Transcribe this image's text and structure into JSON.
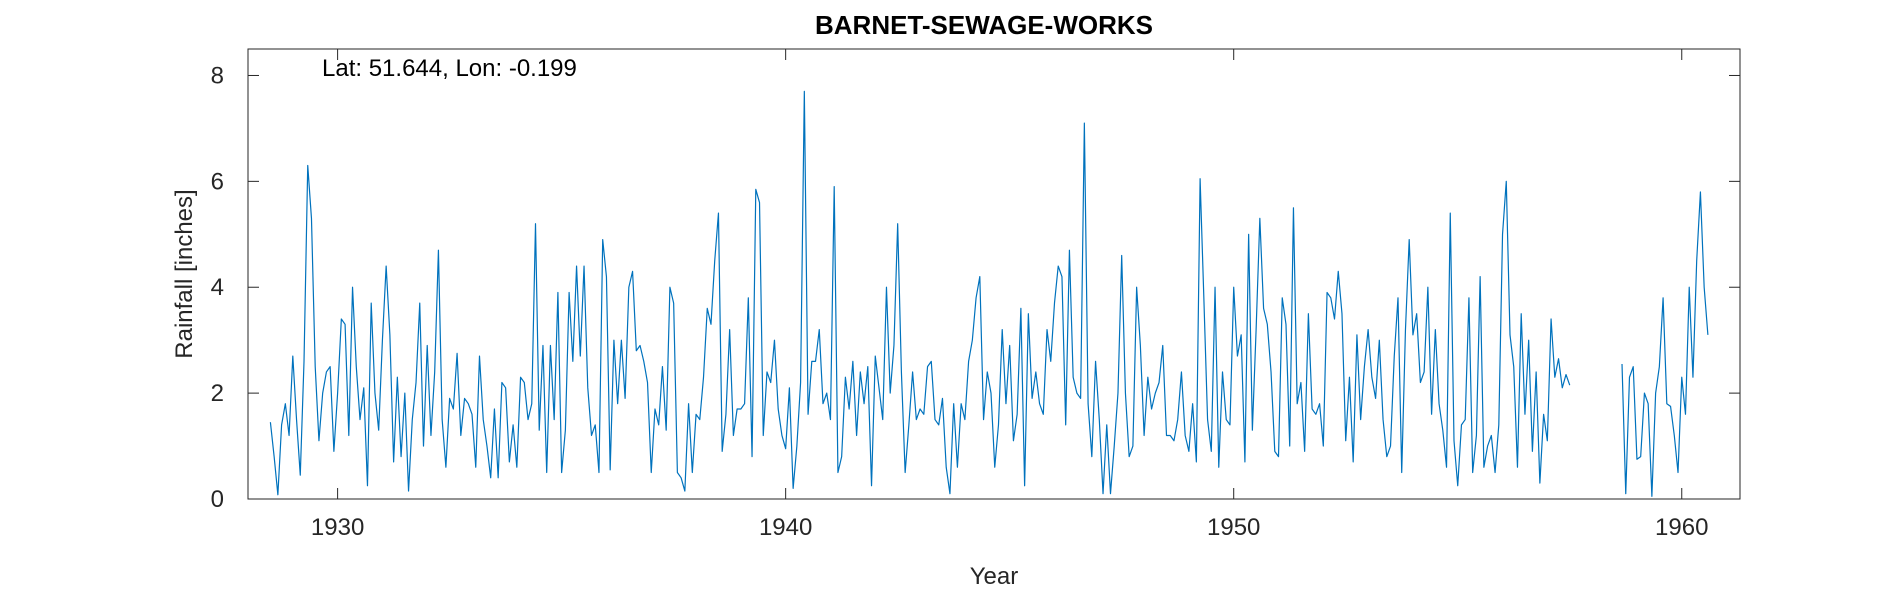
{
  "chart_data": {
    "type": "line",
    "title": "BARNET-SEWAGE-WORKS",
    "xlabel": "Year",
    "ylabel": "Rainfall [inches]",
    "annotation": "Lat: 51.644, Lon: -0.199",
    "xlim": [
      1928,
      1961.3
    ],
    "ylim": [
      0,
      8.5
    ],
    "xticks": [
      1930,
      1940,
      1950,
      1960
    ],
    "xtick_labels": [
      "1930",
      "1940",
      "1950",
      "1960"
    ],
    "yticks": [
      0,
      2,
      4,
      6,
      8
    ],
    "ytick_labels": [
      "0",
      "2",
      "4",
      "6",
      "8"
    ],
    "grid": false,
    "legend": "none",
    "line_color": "#0072BD",
    "series": [
      {
        "start": 1928.5,
        "step_per_year": 12,
        "segments": [
          {
            "start_index": 0,
            "values": [
              1.45,
              0.8,
              0.08,
              1.4,
              1.8,
              1.2,
              2.7,
              1.5,
              0.45,
              2.6,
              6.3,
              5.3,
              2.5,
              1.1,
              2.0,
              2.4,
              2.5,
              0.9,
              2.0,
              3.4,
              3.3,
              1.2,
              4.0,
              2.5,
              1.5,
              2.1,
              0.25,
              3.7,
              2.0,
              1.3,
              3.0,
              4.4,
              3.1,
              0.7,
              2.3,
              0.8,
              2.0,
              0.15,
              1.5,
              2.2,
              3.7,
              1.0,
              2.9,
              1.2,
              2.4,
              4.7,
              1.5,
              0.6,
              1.9,
              1.7,
              2.75,
              1.2,
              1.9,
              1.8,
              1.6,
              0.6,
              2.7,
              1.5,
              1.0,
              0.4,
              1.7,
              0.4,
              2.2,
              2.1,
              0.7,
              1.4,
              0.6,
              2.3,
              2.2,
              1.5,
              1.8,
              5.2,
              1.3,
              2.9,
              0.5,
              2.9,
              1.5,
              3.9,
              0.5,
              1.3,
              3.9,
              2.6,
              4.4,
              2.7,
              4.4,
              2.1,
              1.2,
              1.4,
              0.5,
              4.9,
              4.2,
              0.55,
              3.0,
              1.8,
              3.0,
              1.9,
              4.0,
              4.3,
              2.8,
              2.9,
              2.6,
              2.2,
              0.5,
              1.7,
              1.4,
              2.5,
              1.3,
              4.0,
              3.7,
              0.5,
              0.4,
              0.15,
              1.8,
              0.5,
              1.6,
              1.5,
              2.3,
              3.6,
              3.3,
              4.5,
              5.4,
              0.9,
              1.6,
              3.2,
              1.2,
              1.7,
              1.7,
              1.8,
              3.8,
              0.8,
              5.85,
              5.6,
              1.2,
              2.4,
              2.2,
              3.0,
              1.7,
              1.2,
              0.95,
              2.1,
              0.2,
              1.0,
              2.2,
              7.7,
              1.6,
              2.6,
              2.6,
              3.2,
              1.8,
              2.0,
              1.5,
              5.9,
              0.5,
              0.8,
              2.3,
              1.7,
              2.6,
              1.2,
              2.4,
              1.8,
              2.5,
              0.25,
              2.7,
              2.1,
              1.5,
              4.0,
              2.0,
              2.9,
              5.2,
              2.4,
              0.5,
              1.4,
              2.4,
              1.5,
              1.7,
              1.6,
              2.5,
              2.6,
              1.5,
              1.4,
              1.9,
              0.6,
              0.1,
              1.8,
              0.6,
              1.8,
              1.5,
              2.6,
              3.0,
              3.8,
              4.2,
              1.5,
              2.4,
              2.0,
              0.6,
              1.4,
              3.2,
              1.8,
              2.9,
              1.1,
              1.6,
              3.6,
              0.25,
              3.5,
              1.9,
              2.4,
              1.8,
              1.6,
              3.2,
              2.6,
              3.7,
              4.4,
              4.2,
              1.4,
              4.7,
              2.3,
              2.0,
              1.9,
              7.1,
              1.8,
              0.8,
              2.6,
              1.5,
              0.1,
              1.4,
              0.1,
              1.0,
              2.0,
              4.6,
              2.0,
              0.8,
              1.0,
              4.0,
              2.9,
              1.2,
              2.3,
              1.7,
              2.0,
              2.2,
              2.9,
              1.2,
              1.2,
              1.1,
              1.5,
              2.4,
              1.2,
              0.9,
              1.8,
              0.7,
              6.05,
              3.8,
              1.5,
              0.9,
              4.0,
              0.6,
              2.4,
              1.5,
              1.4,
              4.0,
              2.7,
              3.1,
              0.7,
              5.0,
              1.3,
              3.2,
              5.3,
              3.6,
              3.3,
              2.4,
              0.9,
              0.8,
              3.8,
              3.3,
              1.0,
              5.5,
              1.8,
              2.2,
              0.9,
              3.5,
              1.7,
              1.6,
              1.8,
              1.0,
              3.9,
              3.8,
              3.4,
              4.3,
              3.5,
              1.1,
              2.3,
              0.7,
              3.1,
              1.5,
              2.5,
              3.2,
              2.3,
              1.9,
              3.0,
              1.5,
              0.8,
              1.0,
              2.7,
              3.8,
              0.5,
              3.2,
              4.9,
              3.1,
              3.5,
              2.2,
              2.4,
              4.0,
              1.6,
              3.2,
              1.8,
              1.3,
              0.6,
              5.4,
              1.1,
              0.25,
              1.4,
              1.5,
              3.8,
              0.5,
              1.2,
              4.2,
              0.6,
              1.0,
              1.2,
              0.5,
              1.4,
              5.0,
              6.0,
              3.1,
              2.5,
              0.6,
              3.5,
              1.6,
              3.0,
              0.9,
              2.4,
              0.3,
              1.6,
              1.1,
              3.4,
              2.3,
              2.65,
              2.1,
              2.35,
              2.15
            ]
          },
          {
            "start_index": 362,
            "values": [
              2.55,
              0.1,
              2.3,
              2.5,
              0.75,
              0.8,
              2.0,
              1.8,
              0.05,
              2.0,
              2.5,
              3.8,
              1.8,
              1.75,
              1.2,
              0.5,
              2.3,
              1.6,
              4.0,
              2.3,
              4.5,
              5.8,
              4.0,
              3.1
            ]
          }
        ]
      }
    ]
  }
}
